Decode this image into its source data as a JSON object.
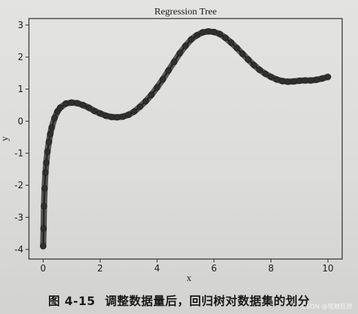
{
  "chart_data": {
    "type": "scatter",
    "title": "Regression Tree",
    "xlabel": "x",
    "ylabel": "y",
    "xlim": [
      -0.5,
      10.5
    ],
    "ylim": [
      -4.3,
      3.2
    ],
    "xticks": [
      0,
      2,
      4,
      6,
      8,
      10
    ],
    "yticks": [
      -4,
      -3,
      -2,
      -1,
      0,
      1,
      2,
      3
    ],
    "grid": false,
    "series": [
      {
        "color": "#1f1f1f",
        "x": [
          0.0,
          0.015,
          0.03,
          0.05,
          0.08,
          0.11,
          0.15,
          0.2,
          0.25,
          0.3,
          0.4,
          0.5,
          0.6,
          0.8,
          1.0,
          1.2,
          1.4,
          1.6,
          1.8,
          2.0,
          2.2,
          2.4,
          2.6,
          2.8,
          3.0,
          3.2,
          3.4,
          3.6,
          3.8,
          4.0,
          4.2,
          4.4,
          4.6,
          4.8,
          5.0,
          5.2,
          5.4,
          5.6,
          5.8,
          6.0,
          6.2,
          6.4,
          6.6,
          6.8,
          7.0,
          7.2,
          7.4,
          7.6,
          7.8,
          8.0,
          8.2,
          8.4,
          8.6,
          8.8,
          9.0,
          9.2,
          9.4,
          9.6,
          9.8,
          10.0
        ],
        "y": [
          -3.9,
          -3.35,
          -2.65,
          -2.1,
          -1.6,
          -1.3,
          -0.95,
          -0.65,
          -0.4,
          -0.2,
          0.1,
          0.3,
          0.42,
          0.55,
          0.58,
          0.56,
          0.5,
          0.42,
          0.32,
          0.24,
          0.17,
          0.13,
          0.12,
          0.14,
          0.2,
          0.3,
          0.45,
          0.62,
          0.82,
          1.05,
          1.3,
          1.58,
          1.85,
          2.12,
          2.35,
          2.55,
          2.68,
          2.77,
          2.8,
          2.78,
          2.72,
          2.6,
          2.45,
          2.28,
          2.1,
          1.92,
          1.75,
          1.6,
          1.48,
          1.38,
          1.3,
          1.25,
          1.23,
          1.24,
          1.26,
          1.27,
          1.27,
          1.29,
          1.33,
          1.38
        ]
      }
    ]
  },
  "caption": {
    "figure_number": "图 4-15",
    "text": "调整数据量后，回归树对数据集的划分"
  },
  "watermark": "CSDN @笔触狂放"
}
